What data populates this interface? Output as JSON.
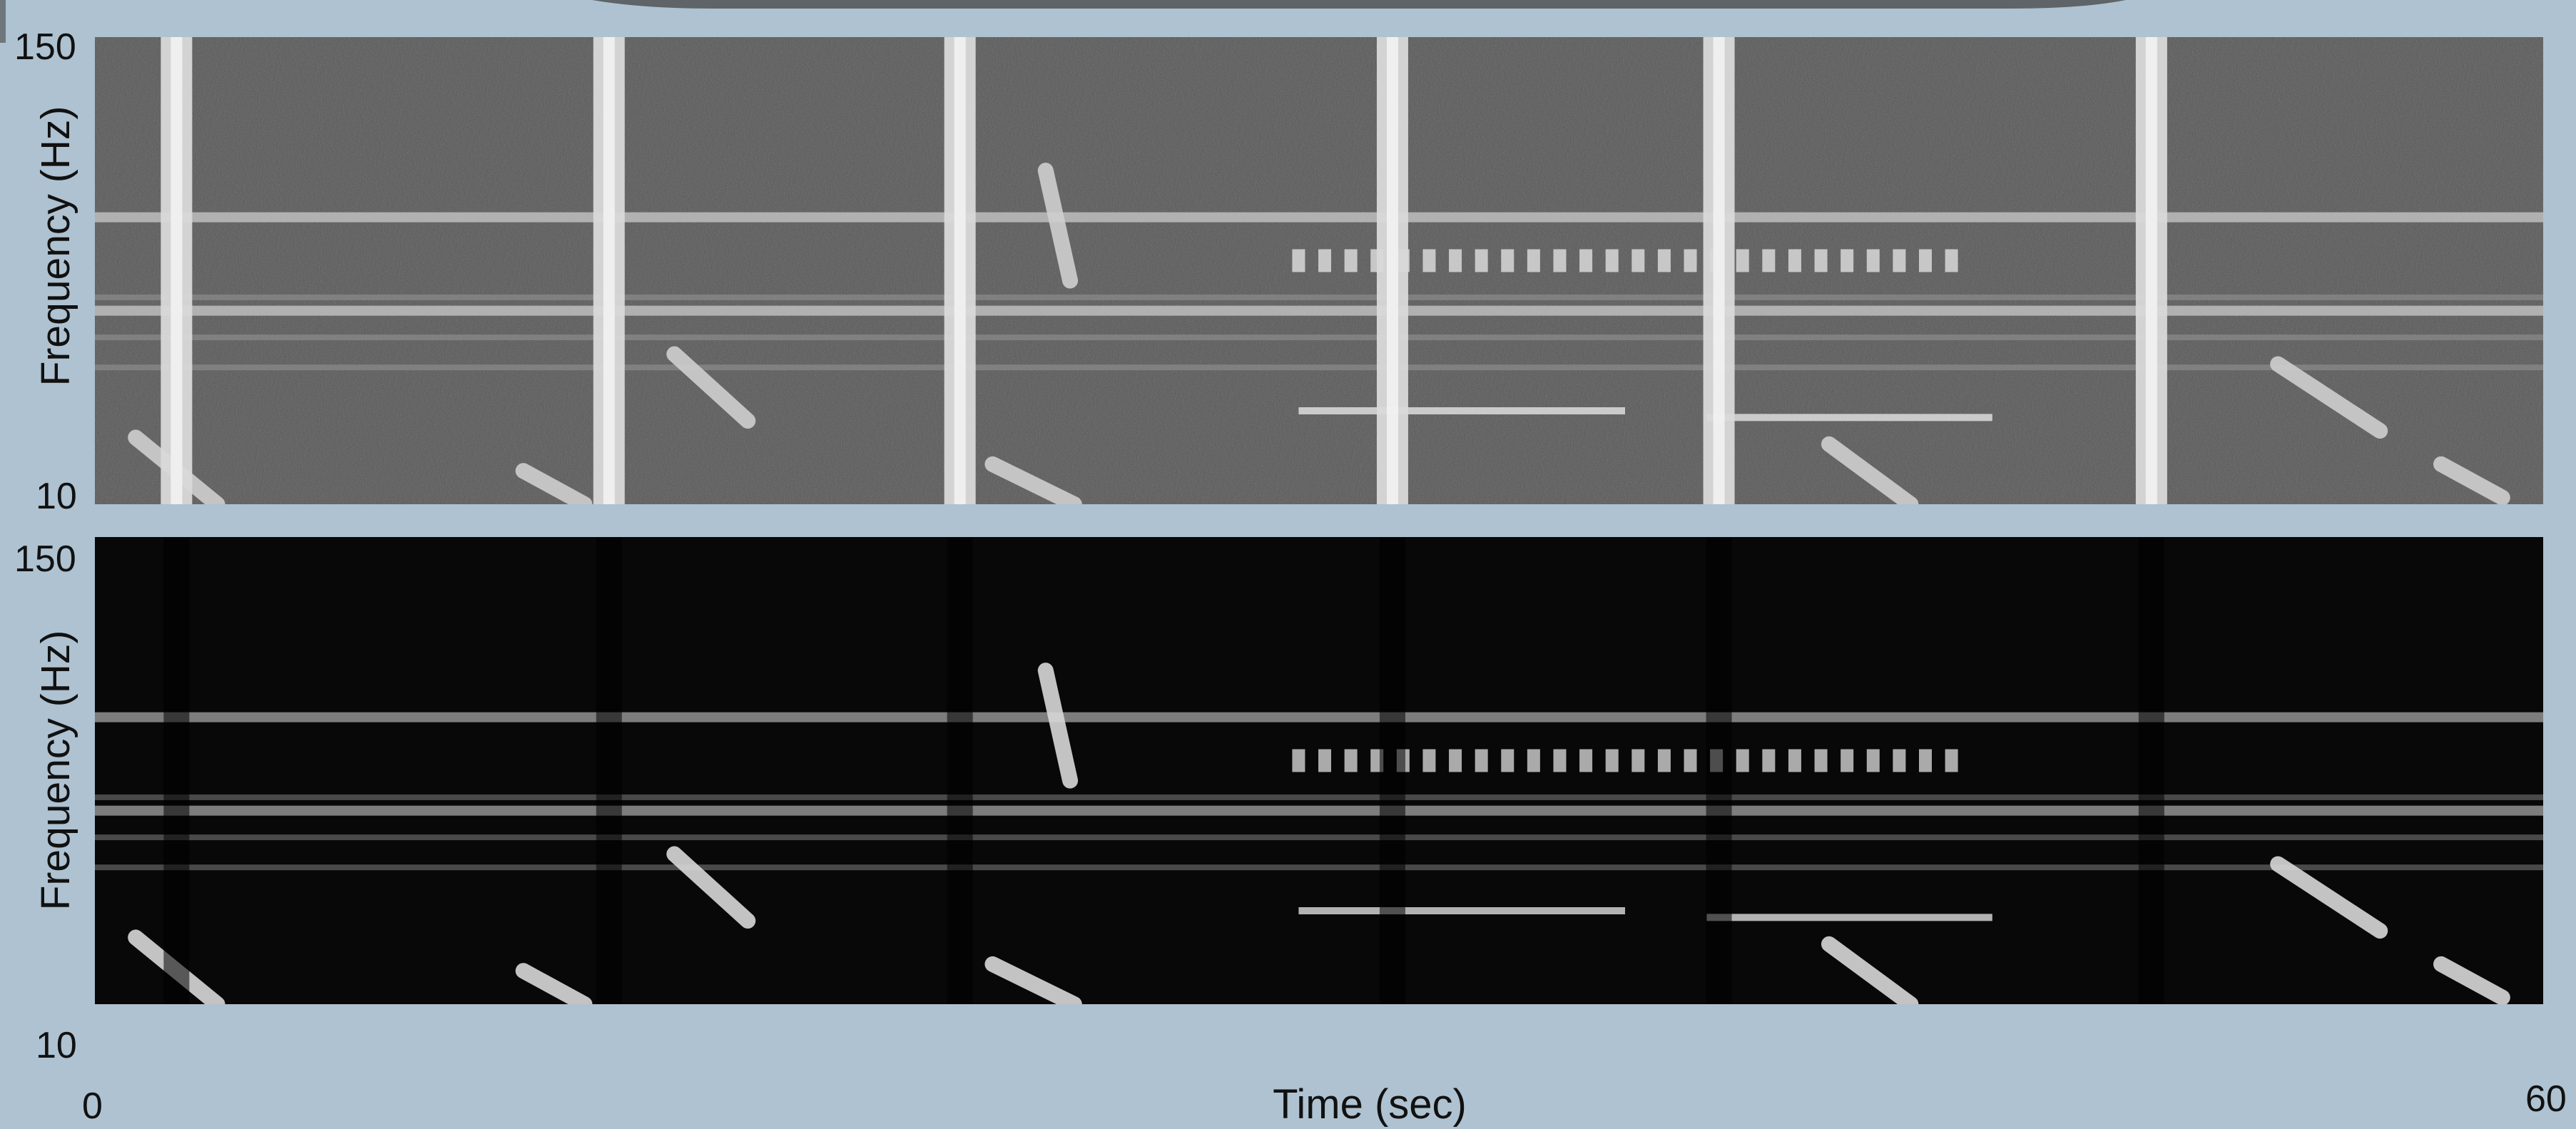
{
  "chart_data": [
    {
      "type": "heatmap",
      "panel": "top",
      "colormap": "grayscale",
      "background_level": "medium-gray",
      "xlim": [
        0,
        60
      ],
      "ylim": [
        10,
        150
      ],
      "ylabel": "Frequency (Hz)",
      "yticks": [
        "150",
        "10"
      ],
      "broadband_pulses_sec": [
        2.0,
        12.6,
        21.2,
        31.8,
        39.8,
        50.4
      ],
      "tonal_lines_hz": [
        51,
        60,
        68,
        72,
        96
      ],
      "strong_tonal_lines_hz": [
        68,
        96
      ],
      "sweeps": [
        {
          "t_start": 23.3,
          "t_end": 23.9,
          "f_start": 110,
          "f_end": 77
        },
        {
          "t_start": 14.2,
          "t_end": 16.0,
          "f_start": 55,
          "f_end": 35
        },
        {
          "t_start": 1.0,
          "t_end": 3.0,
          "f_start": 30,
          "f_end": 10
        },
        {
          "t_start": 10.5,
          "t_end": 12.0,
          "f_start": 20,
          "f_end": 10
        },
        {
          "t_start": 22.0,
          "t_end": 24.0,
          "f_start": 22,
          "f_end": 10
        },
        {
          "t_start": 42.5,
          "t_end": 44.5,
          "f_start": 28,
          "f_end": 10
        },
        {
          "t_start": 53.5,
          "t_end": 56.0,
          "f_start": 52,
          "f_end": 32
        },
        {
          "t_start": 57.5,
          "t_end": 59.0,
          "f_start": 22,
          "f_end": 12
        }
      ],
      "pulse_train": {
        "t_start": 29.5,
        "t_end": 45.5,
        "f_hz": 83,
        "count": 26
      },
      "horizontal_segments": [
        {
          "t_start": 29.5,
          "t_end": 37.5,
          "f_hz": 38
        },
        {
          "t_start": 39.5,
          "t_end": 46.5,
          "f_hz": 36
        }
      ]
    },
    {
      "type": "heatmap",
      "panel": "bottom",
      "colormap": "grayscale",
      "background_level": "near-black",
      "xlim": [
        0,
        60
      ],
      "ylim": [
        10,
        150
      ],
      "xlabel": "Time (sec)",
      "xticks": [
        "0",
        "60"
      ],
      "ylabel": "Frequency (Hz)",
      "yticks": [
        "150",
        "10"
      ],
      "broadband_pulses_sec": [
        2.0,
        12.6,
        21.2,
        31.8,
        39.8,
        50.4
      ],
      "tonal_lines_hz": [
        51,
        60,
        68,
        72,
        96
      ],
      "strong_tonal_lines_hz": [
        68,
        83,
        96
      ],
      "sweeps": [
        {
          "t_start": 23.3,
          "t_end": 23.9,
          "f_start": 110,
          "f_end": 77
        },
        {
          "t_start": 14.2,
          "t_end": 16.0,
          "f_start": 55,
          "f_end": 35
        },
        {
          "t_start": 1.0,
          "t_end": 3.0,
          "f_start": 30,
          "f_end": 10
        },
        {
          "t_start": 10.5,
          "t_end": 12.0,
          "f_start": 20,
          "f_end": 10
        },
        {
          "t_start": 22.0,
          "t_end": 24.0,
          "f_start": 22,
          "f_end": 10
        },
        {
          "t_start": 42.5,
          "t_end": 44.5,
          "f_start": 28,
          "f_end": 10
        },
        {
          "t_start": 53.5,
          "t_end": 56.0,
          "f_start": 52,
          "f_end": 32
        },
        {
          "t_start": 57.5,
          "t_end": 59.0,
          "f_start": 22,
          "f_end": 12
        }
      ],
      "pulse_train": {
        "t_start": 29.5,
        "t_end": 45.5,
        "f_hz": 83,
        "count": 26
      },
      "horizontal_segments": [
        {
          "t_start": 29.5,
          "t_end": 37.5,
          "f_hz": 38
        },
        {
          "t_start": 39.5,
          "t_end": 46.5,
          "f_hz": 36
        }
      ]
    }
  ]
}
